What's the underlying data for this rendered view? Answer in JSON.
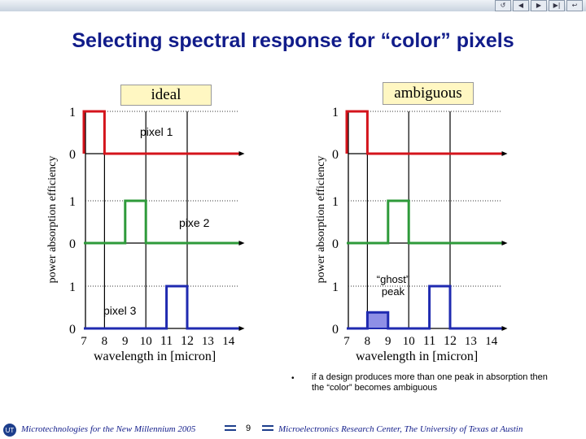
{
  "title": "Selecting spectral response for “color” pixels",
  "nav_buttons": [
    "↺",
    "◀",
    "▶",
    "▶|",
    "↩"
  ],
  "left_panel": {
    "label": "ideal",
    "ylabel": "power absorption efficiency",
    "xlabel": "wavelength in [micron]",
    "x_ticks": [
      "7",
      "8",
      "9",
      "10",
      "11",
      "12",
      "13",
      "14"
    ],
    "pixel_labels": [
      "pixel 1",
      "pixe 2",
      "pixel 3"
    ]
  },
  "right_panel": {
    "label": "ambiguous",
    "ylabel": "power absorption efficiency",
    "xlabel": "wavelength in [micron]",
    "x_ticks": [
      "7",
      "8",
      "9",
      "10",
      "11",
      "12",
      "13",
      "14"
    ],
    "annotation": "“ghost” peak"
  },
  "level_one": "1",
  "level_zero": "0",
  "chart_data": [
    {
      "type": "line",
      "title": "ideal",
      "xlabel": "wavelength in [micron]",
      "ylabel": "power absorption efficiency",
      "xlim": [
        7,
        14.5
      ],
      "series": [
        {
          "name": "pixel 1",
          "color": "#d4141c",
          "x": [
            7,
            7,
            8,
            8,
            14.5
          ],
          "y": [
            0,
            1,
            1,
            0,
            0
          ]
        },
        {
          "name": "pixe 2",
          "color": "#2e9a3a",
          "x": [
            7,
            9,
            9,
            10,
            10,
            14.5
          ],
          "y": [
            0,
            0,
            1,
            1,
            0,
            0
          ]
        },
        {
          "name": "pixel 3",
          "color": "#1f2ab0",
          "x": [
            7,
            11,
            11,
            12,
            12,
            14.5
          ],
          "y": [
            0,
            0,
            1,
            1,
            0,
            0
          ]
        }
      ]
    },
    {
      "type": "line",
      "title": "ambiguous",
      "xlabel": "wavelength in [micron]",
      "ylabel": "power absorption efficiency",
      "xlim": [
        7,
        14.5
      ],
      "series": [
        {
          "color": "#d4141c",
          "x": [
            7,
            7,
            8,
            8,
            14.5
          ],
          "y": [
            0,
            1,
            1,
            0,
            0
          ]
        },
        {
          "color": "#2e9a3a",
          "x": [
            7,
            9,
            9,
            10,
            10,
            14.5
          ],
          "y": [
            0,
            0,
            1,
            1,
            0,
            0
          ]
        },
        {
          "color": "#1f2ab0",
          "x": [
            7,
            8,
            8,
            9,
            9,
            11,
            11,
            12,
            12,
            14.5
          ],
          "y": [
            0,
            0,
            0.38,
            0.38,
            0,
            0,
            1,
            1,
            0,
            0
          ]
        }
      ]
    }
  ],
  "bullet_text": "if a design produces more than one peak in absorption then the “color” becomes ambiguous",
  "footer": {
    "left": "Microtechnologies for the New Millennium 2005",
    "page": "9",
    "right": "Microelectronics Research Center, The University of Texas at Austin"
  }
}
